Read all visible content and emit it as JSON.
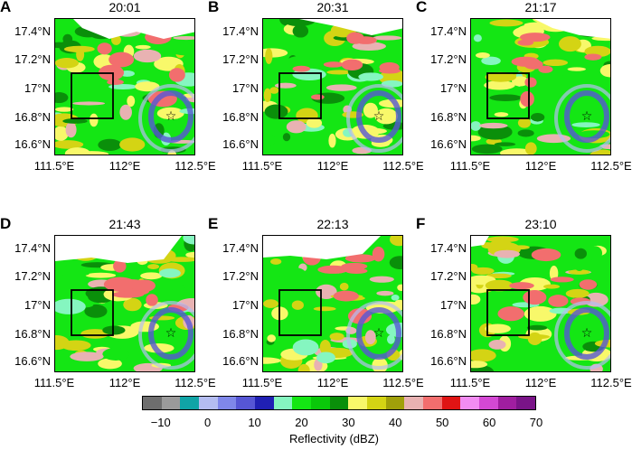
{
  "panels": [
    {
      "label": "A",
      "time": "20:01"
    },
    {
      "label": "B",
      "time": "20:31"
    },
    {
      "label": "C",
      "time": "21:17"
    },
    {
      "label": "D",
      "time": "21:43"
    },
    {
      "label": "E",
      "time": "22:13"
    },
    {
      "label": "F",
      "time": "23:10"
    }
  ],
  "lat_ticks": [
    "17.4°N",
    "17.2°N",
    "17°N",
    "16.8°N",
    "16.6°N"
  ],
  "lon_ticks": [
    "111.5°E",
    "112°E",
    "112.5°E"
  ],
  "colorbar": {
    "title": "Reflectivity (dBZ)",
    "ticks": [
      "−10",
      "0",
      "10",
      "20",
      "30",
      "40",
      "50",
      "60",
      "70"
    ],
    "colors": [
      "#6e6e6e",
      "#9a9a9a",
      "#10a4a6",
      "#b4bdf1",
      "#7f87ea",
      "#5656d5",
      "#2020b4",
      "#85f6c0",
      "#14e614",
      "#0ac80a",
      "#0a8f0a",
      "#f8f86a",
      "#d4d414",
      "#a0a00a",
      "#e8b2b2",
      "#f26e6e",
      "#e01414",
      "#f28cf2",
      "#d448d4",
      "#a01ea0",
      "#7a1488"
    ]
  },
  "map_colors": {
    "bg": "#ffffff",
    "green": "#14e614",
    "dkgreen": "#0a8f0a",
    "yellow": "#f8f86a",
    "olive": "#d4d414",
    "pink": "#f26e6e",
    "lightpink": "#e8b2b2",
    "blue": "#5656d5",
    "ltblue": "#b4bdf1",
    "cyan": "#85f6c0"
  }
}
